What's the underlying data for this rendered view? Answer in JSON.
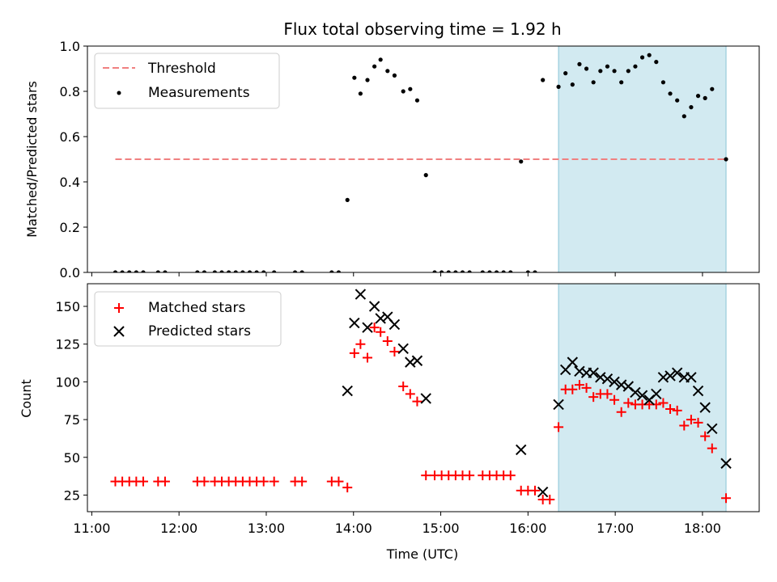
{
  "chart_data": {
    "title": "Flux total observing time = 1.92 h",
    "xlabel": "Time (UTC)",
    "x_unit": "hours UTC",
    "xlim": [
      10.95,
      18.65
    ],
    "x_ticks": [
      {
        "v": 11,
        "label": "11:00"
      },
      {
        "v": 12,
        "label": "12:00"
      },
      {
        "v": 13,
        "label": "13:00"
      },
      {
        "v": 14,
        "label": "14:00"
      },
      {
        "v": 15,
        "label": "15:00"
      },
      {
        "v": 16,
        "label": "16:00"
      },
      {
        "v": 17,
        "label": "17:00"
      },
      {
        "v": 18,
        "label": "18:00"
      }
    ],
    "shaded_region": {
      "x0": 16.35,
      "x1": 18.27,
      "color": "#add8e6"
    },
    "panels": [
      {
        "type": "scatter",
        "ylabel": "Matched/Predicted stars",
        "ylim": [
          0,
          1.0
        ],
        "y_ticks": [
          {
            "v": 0,
            "label": "0.0"
          },
          {
            "v": 0.2,
            "label": "0.2"
          },
          {
            "v": 0.4,
            "label": "0.4"
          },
          {
            "v": 0.6,
            "label": "0.6"
          },
          {
            "v": 0.8,
            "label": "0.8"
          },
          {
            "v": 1.0,
            "label": "1.0"
          }
        ],
        "threshold": {
          "name": "Threshold",
          "value": 0.5,
          "x0": 11.27,
          "x1": 18.27,
          "color": "#f08080"
        },
        "series": [
          {
            "name": "Measurements",
            "marker": "dot",
            "color": "#000000",
            "points": [
              [
                11.27,
                0
              ],
              [
                11.35,
                0
              ],
              [
                11.43,
                0
              ],
              [
                11.51,
                0
              ],
              [
                11.59,
                0
              ],
              [
                11.76,
                0
              ],
              [
                11.84,
                0
              ],
              [
                12.21,
                0
              ],
              [
                12.29,
                0
              ],
              [
                12.41,
                0
              ],
              [
                12.49,
                0
              ],
              [
                12.57,
                0
              ],
              [
                12.65,
                0
              ],
              [
                12.73,
                0
              ],
              [
                12.81,
                0
              ],
              [
                12.89,
                0
              ],
              [
                12.97,
                0
              ],
              [
                13.09,
                0
              ],
              [
                13.33,
                0
              ],
              [
                13.41,
                0
              ],
              [
                13.75,
                0
              ],
              [
                13.83,
                0
              ],
              [
                13.93,
                0.32
              ],
              [
                14.01,
                0.86
              ],
              [
                14.08,
                0.79
              ],
              [
                14.16,
                0.85
              ],
              [
                14.24,
                0.91
              ],
              [
                14.31,
                0.94
              ],
              [
                14.39,
                0.89
              ],
              [
                14.47,
                0.87
              ],
              [
                14.57,
                0.8
              ],
              [
                14.65,
                0.81
              ],
              [
                14.73,
                0.76
              ],
              [
                14.83,
                0.43
              ],
              [
                14.93,
                0
              ],
              [
                15.01,
                0
              ],
              [
                15.09,
                0
              ],
              [
                15.17,
                0
              ],
              [
                15.25,
                0
              ],
              [
                15.33,
                0
              ],
              [
                15.48,
                0
              ],
              [
                15.56,
                0
              ],
              [
                15.64,
                0
              ],
              [
                15.72,
                0
              ],
              [
                15.8,
                0
              ],
              [
                15.92,
                0.49
              ],
              [
                16.0,
                0
              ],
              [
                16.08,
                0
              ],
              [
                16.17,
                0.85
              ],
              [
                16.35,
                0.82
              ],
              [
                16.43,
                0.88
              ],
              [
                16.51,
                0.83
              ],
              [
                16.59,
                0.92
              ],
              [
                16.67,
                0.9
              ],
              [
                16.75,
                0.84
              ],
              [
                16.83,
                0.89
              ],
              [
                16.91,
                0.91
              ],
              [
                16.99,
                0.89
              ],
              [
                17.07,
                0.84
              ],
              [
                17.15,
                0.89
              ],
              [
                17.23,
                0.91
              ],
              [
                17.31,
                0.95
              ],
              [
                17.39,
                0.96
              ],
              [
                17.47,
                0.93
              ],
              [
                17.55,
                0.84
              ],
              [
                17.63,
                0.79
              ],
              [
                17.71,
                0.76
              ],
              [
                17.79,
                0.69
              ],
              [
                17.87,
                0.73
              ],
              [
                17.95,
                0.78
              ],
              [
                18.03,
                0.77
              ],
              [
                18.11,
                0.81
              ],
              [
                18.27,
                0.5
              ]
            ]
          }
        ]
      },
      {
        "type": "scatter",
        "ylabel": "Count",
        "ylim": [
          14,
          165
        ],
        "y_ticks": [
          {
            "v": 25,
            "label": "25"
          },
          {
            "v": 50,
            "label": "50"
          },
          {
            "v": 75,
            "label": "75"
          },
          {
            "v": 100,
            "label": "100"
          },
          {
            "v": 125,
            "label": "125"
          },
          {
            "v": 150,
            "label": "150"
          }
        ],
        "series": [
          {
            "name": "Matched stars",
            "marker": "plus",
            "color": "#ff0000",
            "points": [
              [
                11.27,
                34
              ],
              [
                11.35,
                34
              ],
              [
                11.43,
                34
              ],
              [
                11.51,
                34
              ],
              [
                11.59,
                34
              ],
              [
                11.76,
                34
              ],
              [
                11.84,
                34
              ],
              [
                12.21,
                34
              ],
              [
                12.29,
                34
              ],
              [
                12.41,
                34
              ],
              [
                12.49,
                34
              ],
              [
                12.57,
                34
              ],
              [
                12.65,
                34
              ],
              [
                12.73,
                34
              ],
              [
                12.81,
                34
              ],
              [
                12.89,
                34
              ],
              [
                12.97,
                34
              ],
              [
                13.09,
                34
              ],
              [
                13.33,
                34
              ],
              [
                13.41,
                34
              ],
              [
                13.75,
                34
              ],
              [
                13.83,
                34
              ],
              [
                13.93,
                30
              ],
              [
                14.01,
                119
              ],
              [
                14.08,
                125
              ],
              [
                14.16,
                116
              ],
              [
                14.24,
                136
              ],
              [
                14.31,
                133
              ],
              [
                14.39,
                127
              ],
              [
                14.47,
                120
              ],
              [
                14.57,
                97
              ],
              [
                14.65,
                92
              ],
              [
                14.73,
                87
              ],
              [
                14.83,
                38
              ],
              [
                14.93,
                38
              ],
              [
                15.01,
                38
              ],
              [
                15.09,
                38
              ],
              [
                15.17,
                38
              ],
              [
                15.25,
                38
              ],
              [
                15.33,
                38
              ],
              [
                15.48,
                38
              ],
              [
                15.56,
                38
              ],
              [
                15.64,
                38
              ],
              [
                15.72,
                38
              ],
              [
                15.8,
                38
              ],
              [
                15.92,
                28
              ],
              [
                16.0,
                28
              ],
              [
                16.08,
                28
              ],
              [
                16.17,
                22
              ],
              [
                16.25,
                22
              ],
              [
                16.35,
                70
              ],
              [
                16.43,
                95
              ],
              [
                16.51,
                95
              ],
              [
                16.59,
                98
              ],
              [
                16.67,
                96
              ],
              [
                16.75,
                90
              ],
              [
                16.83,
                92
              ],
              [
                16.91,
                92
              ],
              [
                16.99,
                88
              ],
              [
                17.07,
                80
              ],
              [
                17.15,
                86
              ],
              [
                17.23,
                85
              ],
              [
                17.31,
                85
              ],
              [
                17.39,
                85
              ],
              [
                17.47,
                85
              ],
              [
                17.55,
                86
              ],
              [
                17.63,
                82
              ],
              [
                17.71,
                81
              ],
              [
                17.79,
                71
              ],
              [
                17.87,
                75
              ],
              [
                17.95,
                73
              ],
              [
                18.03,
                64
              ],
              [
                18.11,
                56
              ],
              [
                18.27,
                23
              ]
            ]
          },
          {
            "name": "Predicted stars",
            "marker": "x",
            "color": "#000000",
            "points": [
              [
                13.93,
                94
              ],
              [
                14.01,
                139
              ],
              [
                14.08,
                158
              ],
              [
                14.16,
                136
              ],
              [
                14.24,
                150
              ],
              [
                14.31,
                142
              ],
              [
                14.39,
                143
              ],
              [
                14.47,
                138
              ],
              [
                14.57,
                122
              ],
              [
                14.65,
                113
              ],
              [
                14.73,
                114
              ],
              [
                14.83,
                89
              ],
              [
                15.92,
                55
              ],
              [
                16.17,
                27
              ],
              [
                16.35,
                85
              ],
              [
                16.43,
                108
              ],
              [
                16.51,
                113
              ],
              [
                16.59,
                107
              ],
              [
                16.67,
                106
              ],
              [
                16.75,
                106
              ],
              [
                16.83,
                103
              ],
              [
                16.91,
                102
              ],
              [
                16.99,
                100
              ],
              [
                17.07,
                98
              ],
              [
                17.15,
                97
              ],
              [
                17.23,
                93
              ],
              [
                17.31,
                91
              ],
              [
                17.39,
                88
              ],
              [
                17.47,
                92
              ],
              [
                17.55,
                103
              ],
              [
                17.63,
                104
              ],
              [
                17.71,
                106
              ],
              [
                17.79,
                103
              ],
              [
                17.87,
                103
              ],
              [
                17.95,
                94
              ],
              [
                18.03,
                83
              ],
              [
                18.11,
                69
              ],
              [
                18.27,
                46
              ]
            ]
          }
        ]
      }
    ]
  }
}
